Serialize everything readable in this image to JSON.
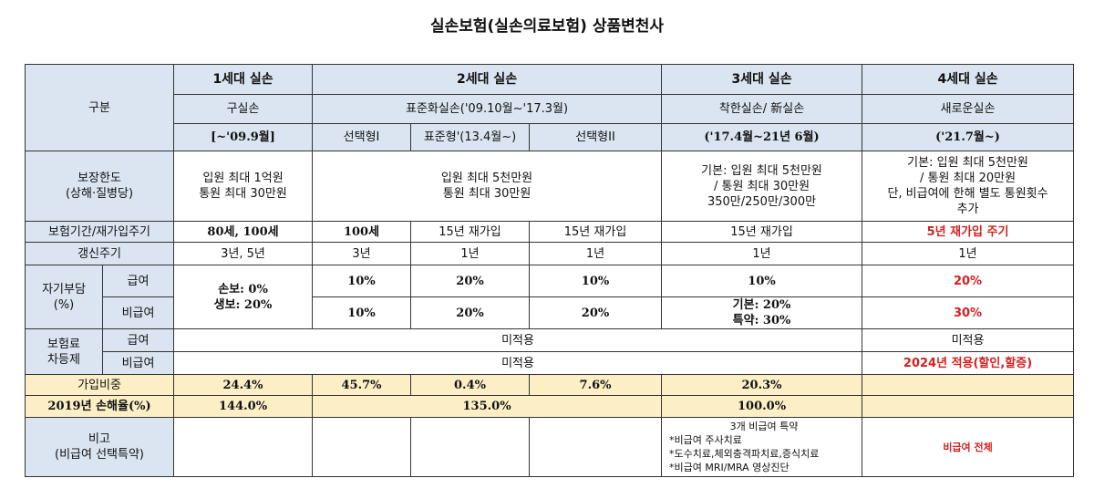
{
  "title": "실손보험(실손의료보험) 상품변천사",
  "table": {
    "rows": [
      [
        [
          "구분"
        ],
        [
          "1세대 실손"
        ],
        [
          "2세대 실손"
        ],
        [
          "3세대 실손"
        ],
        [
          "4세대 실손"
        ]
      ],
      [
        [
          "구실손"
        ],
        [
          "표준화실손('09.10월~'17.3월)"
        ],
        [
          "착한실손/ 新실손"
        ],
        [
          "새로운실손"
        ]
      ],
      [
        [
          "[~'09.9월]"
        ],
        [
          "선택형Ⅰ"
        ],
        [
          "표준형'(13.4월~)"
        ],
        [
          "선택형II"
        ],
        [
          "('17.4월~21년 6월)"
        ],
        [
          "('21.7월~)"
        ]
      ],
      [
        [
          "보장한도",
          "(상해·질병당)"
        ],
        [
          "입원 최대 1억원",
          "통원 최대 30만원"
        ],
        [
          "입원 최대 5천만원",
          "통원 최대 30만원"
        ],
        [
          "기본: 입원 최대 5천만원",
          "/ 통원 최대 30만원",
          "350만/250만/300만"
        ],
        [
          "기본: 입원 최대 5천만원",
          "/ 통원 최대 20만원",
          "단, 비급여에 한해 별도 통원횟수",
          "추가"
        ]
      ],
      [
        [
          "보험기간/재가입주기"
        ],
        [
          "80세, 100세"
        ],
        [
          "100세"
        ],
        [
          "15년 재가입"
        ],
        [
          "15년 재가입"
        ],
        [
          "15년 재가입"
        ],
        [
          "5년 재가입 주기"
        ]
      ],
      [
        [
          "갱신주기"
        ],
        [
          "3년, 5년"
        ],
        [
          "3년"
        ],
        [
          "1년"
        ],
        [
          "1년"
        ],
        [
          "1년"
        ],
        [
          "1년"
        ]
      ],
      [
        [
          "자기부담",
          "(%)"
        ],
        [
          "급여"
        ],
        [
          "손보: 0%",
          "생보: 20%"
        ],
        [
          "10%"
        ],
        [
          "20%"
        ],
        [
          "10%"
        ],
        [
          "10%"
        ],
        [
          "20%"
        ]
      ],
      [
        [
          "비급여"
        ],
        [
          "10%"
        ],
        [
          "20%"
        ],
        [
          "20%"
        ],
        [
          "기본: 20%",
          "특약: 30%"
        ],
        [
          "30%"
        ]
      ],
      [
        [
          "보험료",
          "차등제"
        ],
        [
          "급여"
        ],
        [
          "미적용"
        ],
        [
          "미적용"
        ]
      ],
      [
        [
          "비급여"
        ],
        [
          "미적용"
        ],
        [
          "2024년 적용(할인,할증)"
        ]
      ],
      [
        [
          "가입비중"
        ],
        [
          "24.4%"
        ],
        [
          "45.7%"
        ],
        [
          "0.4%"
        ],
        [
          "7.6%"
        ],
        [
          "20.3%"
        ]
      ],
      [
        [
          "2019년 손해율(%)"
        ],
        [
          "144.0%"
        ],
        [
          "135.0%"
        ],
        [
          "100.0%"
        ]
      ],
      [
        [
          "비고",
          "(비급여 선택특약)"
        ],
        [
          "3개 비급여 특약",
          "*비급여 주사치료",
          "*도수치료,체외충격파치료,증식치료",
          "*비급여 MRI/MRA 영상진단"
        ],
        [
          "비급여 전체"
        ]
      ]
    ]
  }
}
